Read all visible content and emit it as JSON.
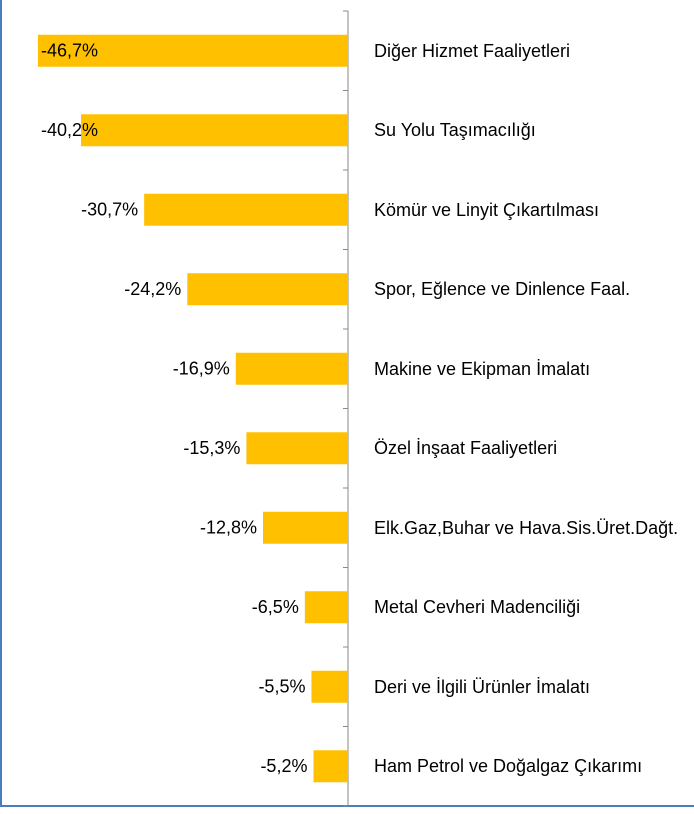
{
  "chart_data": {
    "type": "barh",
    "categories": [
      "Diğer Hizmet Faaliyetleri",
      "Su Yolu Taşımacılığı",
      "Kömür ve Linyit Çıkartılması",
      "Spor, Eğlence ve Dinlence Faal.",
      "Makine ve Ekipman İmalatı",
      "Özel İnşaat Faaliyetleri",
      "Elk.Gaz,Buhar ve Hava.Sis.Üret.Dağt.",
      "Metal Cevheri Madenciliği",
      "Deri ve İlgili Ürünler İmalatı",
      "Ham Petrol ve Doğalgaz Çıkarımı"
    ],
    "values": [
      -46.7,
      -40.2,
      -30.7,
      -24.2,
      -16.9,
      -15.3,
      -12.8,
      -6.5,
      -5.5,
      -5.2
    ],
    "value_labels": [
      "-46,7%",
      "-40,2%",
      "-30,7%",
      "-24,2%",
      "-16,9%",
      "-15,3%",
      "-12,8%",
      "-6,5%",
      "-5,5%",
      "-5,2%"
    ],
    "color": "#ffc000",
    "xlim": [
      -50,
      0
    ]
  }
}
